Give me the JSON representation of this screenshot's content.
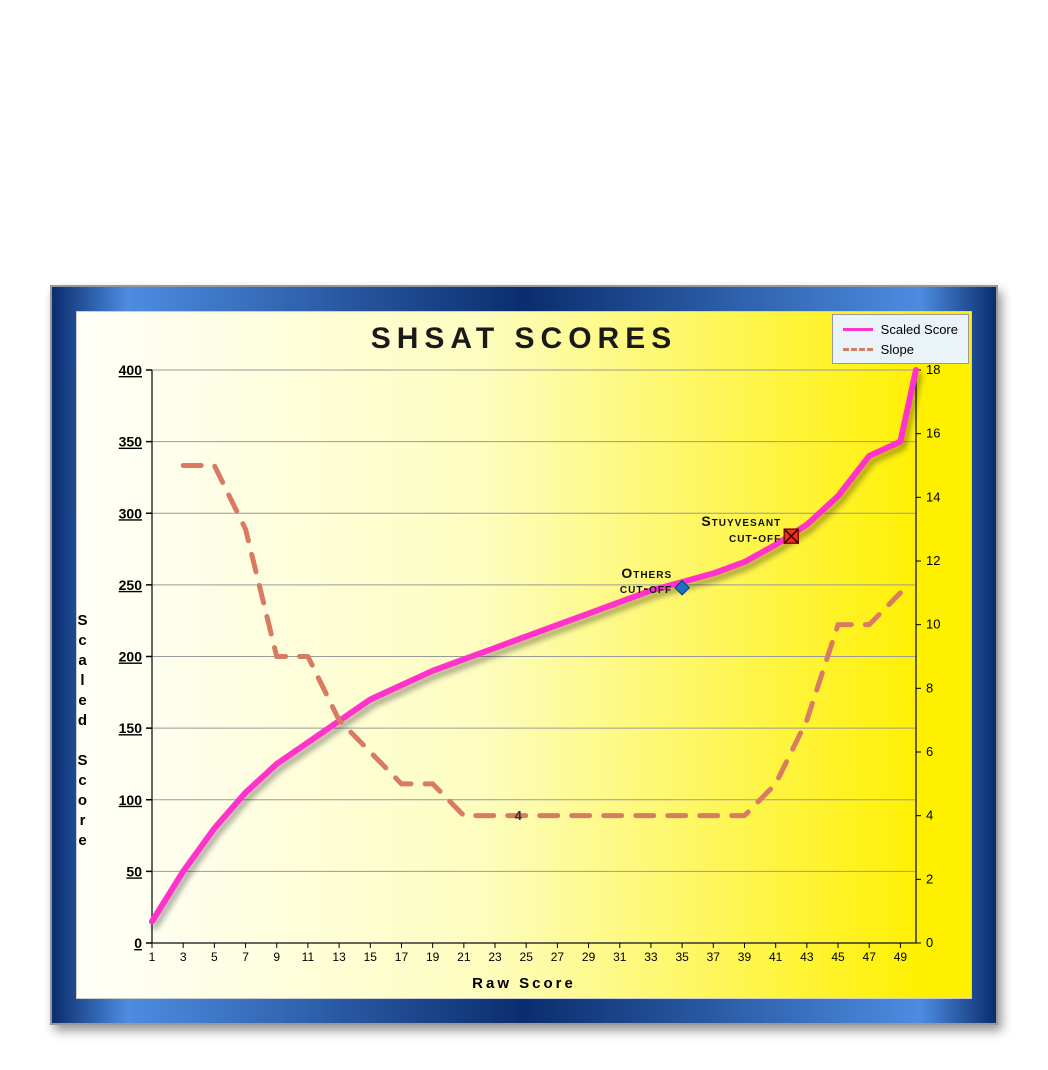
{
  "chart": {
    "type": "line",
    "title": "SHSAT SCORES",
    "title_fontsize": 30,
    "background_gradient": [
      "#fffffa",
      "#fff000"
    ],
    "frame_gradient": [
      "#0a2d6e",
      "#4e8ce0"
    ],
    "x_axis": {
      "label": "Raw Score",
      "ticks": [
        1,
        3,
        5,
        7,
        9,
        11,
        13,
        15,
        17,
        19,
        21,
        23,
        25,
        27,
        29,
        31,
        33,
        35,
        37,
        39,
        41,
        43,
        45,
        47,
        49
      ],
      "label_fontsize": 15,
      "tick_fontsize": 12,
      "min": 1,
      "max": 50
    },
    "y_left": {
      "label": "Scaled Score",
      "ticks": [
        0,
        50,
        100,
        150,
        200,
        250,
        300,
        350,
        400
      ],
      "label_fontsize": 15,
      "tick_fontsize": 14,
      "min": 0,
      "max": 400,
      "tick_underline": true
    },
    "y_right": {
      "ticks": [
        0,
        2,
        4,
        6,
        8,
        10,
        12,
        14,
        16,
        18
      ],
      "tick_fontsize": 13,
      "min": 0,
      "max": 18
    },
    "grid_color": "#9a9a9a",
    "series": [
      {
        "name": "Scaled Score",
        "color": "#ff33cc",
        "line_width": 6,
        "dash": "solid",
        "shadow": true,
        "axis": "left",
        "x": [
          1,
          3,
          5,
          7,
          9,
          11,
          13,
          15,
          17,
          19,
          21,
          23,
          25,
          27,
          29,
          31,
          33,
          35,
          37,
          39,
          41,
          43,
          45,
          47,
          49,
          50
        ],
        "y": [
          15,
          50,
          80,
          105,
          125,
          140,
          155,
          170,
          180,
          190,
          198,
          206,
          214,
          222,
          230,
          238,
          246,
          252,
          258,
          266,
          278,
          292,
          312,
          340,
          350,
          400
        ]
      },
      {
        "name": "Slope",
        "color": "#d97b63",
        "line_width": 5,
        "dash": "dashed",
        "axis": "right",
        "x": [
          3,
          5,
          7,
          9,
          11,
          13,
          15,
          17,
          19,
          21,
          23,
          25,
          27,
          29,
          31,
          33,
          35,
          37,
          39,
          41,
          43,
          45,
          47,
          49
        ],
        "y": [
          15,
          15,
          13,
          9,
          9,
          7,
          6,
          5,
          5,
          4,
          4,
          4,
          4,
          4,
          4,
          4,
          4,
          4,
          4,
          5,
          7,
          10,
          10,
          11
        ]
      }
    ],
    "markers": [
      {
        "name": "others-cutoff-marker",
        "label": "Others\ncut-off",
        "x": 35,
        "y": 248,
        "shape": "diamond",
        "color": "#1f6fc2",
        "size": 10
      },
      {
        "name": "stuyvesant-cutoff-marker",
        "label": "Stuyvesant\ncut-off",
        "x": 42,
        "y": 284,
        "shape": "square",
        "color": "#ef2e1e",
        "size": 14
      }
    ],
    "legend": {
      "position": "top-right",
      "background": "#eaf3f8",
      "items": [
        {
          "label": "Scaled Score",
          "color": "#ff33cc",
          "dash": "solid"
        },
        {
          "label": "Slope",
          "color": "#d97b63",
          "dash": "dashed"
        }
      ]
    },
    "inline_value_labels": [
      {
        "x": 24,
        "y_right": 4,
        "text": "4"
      }
    ]
  }
}
